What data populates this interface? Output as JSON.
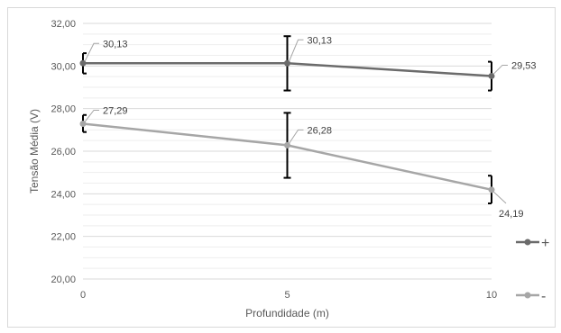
{
  "chart_data": {
    "type": "line",
    "title": "",
    "xlabel": "Profundidade (m)",
    "ylabel": "Tensão Média (V)",
    "ylim": [
      20,
      32
    ],
    "yticks": [
      "20,00",
      "22,00",
      "24,00",
      "26,00",
      "28,00",
      "30,00",
      "32,00"
    ],
    "xlim": [
      0,
      10
    ],
    "xticks": [
      "0",
      "5",
      "10"
    ],
    "x": [
      0,
      5,
      10
    ],
    "grid": true,
    "legend": "right",
    "series": [
      {
        "name": "+",
        "color": "#6b6b6b",
        "values": [
          30.13,
          30.13,
          29.53
        ],
        "labels": [
          "30,13",
          "30,13",
          "29,53"
        ],
        "err_low": [
          29.65,
          28.85,
          28.85
        ],
        "err_high": [
          30.6,
          31.4,
          30.2
        ]
      },
      {
        "name": "-",
        "color": "#a6a6a6",
        "values": [
          27.29,
          26.28,
          24.19
        ],
        "labels": [
          "27,29",
          "26,28",
          "24,19"
        ],
        "err_low": [
          26.9,
          24.75,
          23.55
        ],
        "err_high": [
          27.7,
          27.8,
          24.85
        ]
      }
    ]
  }
}
